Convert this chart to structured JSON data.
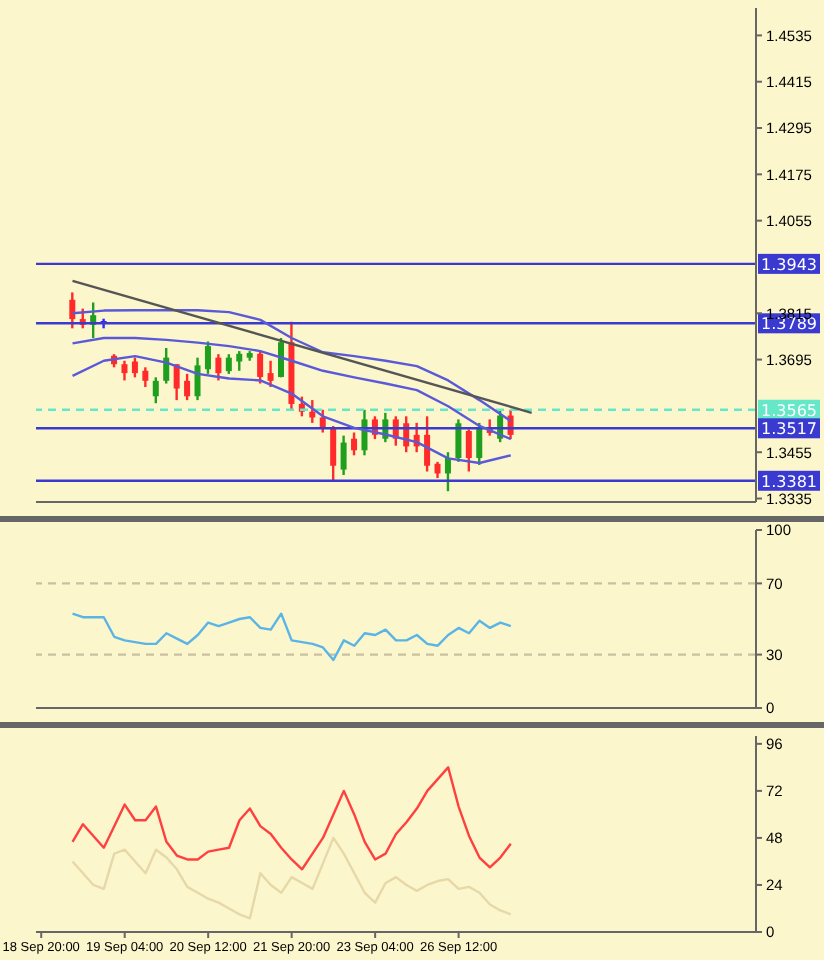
{
  "chart_data": [
    {
      "type": "candlestick",
      "tick_labels": "y",
      "ohlc": [
        null,
        null,
        null,
        [
          1.385,
          1.3869,
          1.3776,
          1.38
        ],
        [
          1.38,
          1.3827,
          1.3776,
          1.3785
        ],
        [
          1.3785,
          1.3843,
          1.3751,
          1.381
        ],
        [
          1.3795,
          1.3801,
          1.3776,
          1.379
        ],
        [
          1.3705,
          1.3709,
          1.3675,
          1.3683
        ],
        [
          1.3683,
          1.3692,
          1.3641,
          1.366
        ],
        [
          1.369,
          1.37,
          1.3649,
          1.366
        ],
        [
          1.3666,
          1.3675,
          1.3624,
          1.364
        ],
        [
          1.36,
          1.3649,
          1.3582,
          1.364
        ],
        [
          1.364,
          1.3725,
          1.3633,
          1.37
        ],
        [
          1.3683,
          1.3683,
          1.359,
          1.362
        ],
        [
          1.364,
          1.3658,
          1.359,
          1.36
        ],
        [
          1.36,
          1.37,
          1.359,
          1.368
        ],
        [
          1.367,
          1.3742,
          1.3658,
          1.373
        ],
        [
          1.37,
          1.3709,
          1.3641,
          1.366
        ],
        [
          1.3665,
          1.3709,
          1.3658,
          1.37
        ],
        [
          1.369,
          1.3717,
          1.3666,
          1.371
        ],
        [
          1.37,
          1.3717,
          1.3692,
          1.3712
        ],
        [
          1.371,
          1.3717,
          1.3633,
          1.365
        ],
        [
          1.366,
          1.3692,
          1.3624,
          1.364
        ],
        [
          1.365,
          1.3751,
          1.3649,
          1.374
        ],
        [
          1.374,
          1.3793,
          1.3565,
          1.358
        ],
        [
          1.358,
          1.3599,
          1.3548,
          1.356
        ],
        [
          1.356,
          1.359,
          1.3531,
          1.3545
        ],
        [
          1.3545,
          1.3565,
          1.3506,
          1.352
        ],
        [
          1.352,
          1.3523,
          1.338,
          1.342
        ],
        [
          1.341,
          1.3498,
          1.3396,
          1.348
        ],
        [
          1.349,
          1.3506,
          1.3447,
          1.346
        ],
        [
          1.346,
          1.3565,
          1.3447,
          1.354
        ],
        [
          1.354,
          1.3548,
          1.3489,
          1.35
        ],
        [
          1.349,
          1.3557,
          1.3481,
          1.354
        ],
        [
          1.354,
          1.3548,
          1.3472,
          1.349
        ],
        [
          1.353,
          1.3548,
          1.3455,
          1.347
        ],
        [
          1.35,
          1.3531,
          1.3455,
          1.347
        ],
        [
          1.35,
          1.3548,
          1.3405,
          1.342
        ],
        [
          1.3425,
          1.343,
          1.3388,
          1.34
        ],
        [
          1.34,
          1.3455,
          1.3354,
          1.344
        ],
        [
          1.344,
          1.354,
          1.343,
          1.353
        ],
        [
          1.351,
          1.3514,
          1.3405,
          1.344
        ],
        [
          1.344,
          1.3531,
          1.3422,
          1.352
        ],
        [
          1.352,
          1.354,
          1.3498,
          1.3505
        ],
        [
          1.349,
          1.3565,
          1.3481,
          1.355
        ],
        [
          1.355,
          1.3565,
          1.3489,
          1.35
        ],
        null,
        null,
        null,
        null,
        null,
        null,
        null,
        null,
        null,
        null,
        null,
        null,
        null,
        null,
        null,
        null,
        null,
        null,
        null,
        null,
        null,
        null,
        null
      ],
      "colors": [
        null,
        null,
        null,
        "#ff2a2a",
        "#ff2a2a",
        "#1ea01e",
        "#2a2aff",
        "#ff2a2a",
        "#ff2a2a",
        "#ff2a2a",
        "#ff2a2a",
        "#1ea01e",
        "#1ea01e",
        "#ff2a2a",
        "#ff2a2a",
        "#1ea01e",
        "#1ea01e",
        "#ff2a2a",
        "#1ea01e",
        "#1ea01e",
        "#1ea01e",
        "#ff2a2a",
        "#ff2a2a",
        "#1ea01e",
        "#ff2a2a",
        "#ff2a2a",
        "#ff2a2a",
        "#ff2a2a",
        "#ff2a2a",
        "#1ea01e",
        "#ff2a2a",
        "#1ea01e",
        "#ff2a2a",
        "#1ea01e",
        "#ff2a2a",
        "#ff2a2a",
        "#ff2a2a",
        "#ff2a2a",
        "#ff2a2a",
        "#1ea01e",
        "#1ea01e",
        "#ff2a2a",
        "#1ea01e",
        "#ff2a2a",
        "#1ea01e",
        "#ff2a2a",
        null,
        null,
        null,
        null,
        null,
        null,
        null,
        null,
        null,
        null,
        null,
        null,
        null,
        null,
        null,
        null,
        null,
        null,
        null,
        null,
        null,
        null,
        null
      ],
      "series": [
        {
          "type": "line",
          "color": "#5a5ad8",
          "values": [
            null,
            null,
            null,
            1.3815,
            null,
            null,
            1.3822,
            null,
            null,
            1.3823,
            null,
            null,
            1.3823,
            null,
            null,
            1.3823,
            null,
            null,
            1.3818,
            null,
            null,
            1.3798,
            null,
            null,
            1.3751,
            null,
            null,
            1.3714,
            null,
            null,
            1.3704,
            null,
            null,
            1.3692,
            null,
            null,
            1.3678,
            null,
            null,
            1.3641,
            null,
            null,
            1.359,
            null,
            null,
            1.3536,
            null,
            null,
            null,
            null,
            null,
            null,
            null,
            null,
            null,
            null,
            null,
            null,
            null,
            null,
            null,
            null,
            null,
            null,
            null,
            null,
            null,
            null,
            null
          ]
        },
        {
          "type": "line",
          "color": "#5a5ad8",
          "values": [
            null,
            null,
            null,
            1.3737,
            null,
            null,
            1.3751,
            null,
            null,
            1.3751,
            null,
            null,
            1.3746,
            null,
            null,
            1.3739,
            null,
            null,
            1.373,
            null,
            null,
            1.3717,
            null,
            null,
            1.3692,
            null,
            null,
            1.3666,
            null,
            null,
            1.3649,
            null,
            null,
            1.3633,
            null,
            null,
            1.3616,
            null,
            null,
            1.3574,
            null,
            null,
            1.3523,
            null,
            null,
            1.3489,
            null,
            null,
            null,
            null,
            null,
            null,
            null,
            null,
            null,
            null,
            null,
            null,
            null,
            null,
            null,
            null,
            null,
            null,
            null,
            null,
            null,
            null,
            null
          ]
        },
        {
          "type": "line",
          "color": "#5a5ad8",
          "values": [
            null,
            null,
            null,
            1.3653,
            null,
            null,
            1.3692,
            null,
            null,
            1.3704,
            null,
            null,
            1.3687,
            null,
            null,
            1.3658,
            null,
            null,
            1.3646,
            null,
            null,
            1.3641,
            null,
            null,
            1.3607,
            null,
            null,
            1.3548,
            null,
            null,
            1.3518,
            null,
            null,
            1.3501,
            null,
            null,
            1.3481,
            null,
            null,
            1.3439,
            null,
            null,
            1.3427,
            null,
            null,
            1.3447,
            null,
            null,
            null,
            null,
            null,
            null,
            null,
            null,
            null,
            null,
            null,
            null,
            null,
            null,
            null,
            null,
            null,
            null,
            null,
            null,
            null,
            null,
            null
          ]
        },
        {
          "type": "line",
          "color": "#555555",
          "values": [
            null,
            null,
            null,
            1.3899,
            null,
            null,
            null,
            null,
            null,
            null,
            null,
            null,
            null,
            null,
            null,
            null,
            null,
            null,
            null,
            null,
            null,
            null,
            null,
            null,
            null,
            null,
            null,
            null,
            null,
            null,
            null,
            null,
            null,
            null,
            null,
            null,
            null,
            null,
            null,
            null,
            null,
            null,
            null,
            null,
            null,
            null,
            null,
            1.3557,
            null,
            null,
            null,
            null,
            null,
            null,
            null,
            null,
            null,
            null,
            null,
            null,
            null,
            null,
            null,
            null,
            null,
            null,
            null,
            null,
            null
          ]
        }
      ],
      "ylim": [
        1.3326,
        1.4606
      ],
      "yticks": [
        1.4535,
        1.4415,
        1.4295,
        1.4175,
        1.4055,
        1.3815,
        1.3695,
        1.3455,
        1.3335
      ],
      "ref_lines": [
        {
          "axis": "y",
          "value": 1.3943,
          "label": "1.3943",
          "color": "#3a3ad0"
        },
        {
          "axis": "y",
          "value": 1.3789,
          "label": "1.3789",
          "color": "#3a3ad0"
        },
        {
          "axis": "y",
          "value": 1.3565,
          "label": "1.3565",
          "color": "#66e8c8",
          "line_style": "dashed"
        },
        {
          "axis": "y",
          "value": 1.3517,
          "label": "1.3517",
          "color": "#3a3ad0"
        },
        {
          "axis": "y",
          "value": 1.3381,
          "label": "1.3381",
          "color": "#3a3ad0"
        }
      ]
    },
    {
      "type": "line",
      "tick_labels": "y",
      "series": [
        {
          "color": "#5ab4e6",
          "values": [
            null,
            null,
            null,
            53,
            51,
            51,
            51,
            40,
            38,
            37,
            36,
            36,
            42,
            39,
            36,
            41,
            48,
            46,
            48,
            50,
            51,
            45,
            44,
            53,
            38,
            37,
            36,
            34,
            27,
            38,
            35,
            42,
            41,
            44,
            38,
            38,
            41,
            36,
            35,
            41,
            45,
            42,
            49,
            45,
            48,
            46,
            null,
            null,
            null,
            null,
            null,
            null,
            null,
            null,
            null,
            null,
            null,
            null,
            null,
            null,
            null,
            null,
            null,
            null,
            null,
            null,
            null,
            null,
            null
          ]
        }
      ],
      "ylim": [
        0,
        100
      ],
      "yticks": [
        0,
        30,
        70,
        100
      ],
      "ref_lines": [
        {
          "axis": "y",
          "value": 70,
          "color": "#c8c0a0",
          "line_style": "dashed"
        },
        {
          "axis": "y",
          "value": 30,
          "color": "#c8c0a0",
          "line_style": "dashed"
        }
      ]
    },
    {
      "type": "line",
      "categories": [
        "18 Sep 20:00",
        null,
        null,
        null,
        null,
        null,
        null,
        null,
        "19 Sep 04:00",
        null,
        null,
        null,
        null,
        null,
        null,
        null,
        "20 Sep 12:00",
        null,
        null,
        null,
        null,
        null,
        null,
        null,
        "21 Sep 20:00",
        null,
        null,
        null,
        null,
        null,
        null,
        null,
        "23 Sep 04:00",
        null,
        null,
        null,
        null,
        null,
        null,
        null,
        "26 Sep 12:00",
        null,
        null,
        null,
        null,
        null,
        null,
        null,
        null,
        null,
        null,
        null,
        null,
        null,
        null,
        null,
        null,
        null,
        null,
        null,
        null,
        null,
        null,
        null,
        null,
        null,
        null,
        null,
        null
      ],
      "series": [
        {
          "color": "#e6d8a8",
          "values": [
            null,
            null,
            null,
            36,
            30,
            24,
            22,
            40,
            42,
            36,
            30,
            42,
            38,
            32,
            23,
            20,
            17,
            15,
            12,
            9,
            7,
            30,
            24,
            20,
            28,
            25,
            22,
            35,
            48,
            40,
            30,
            20,
            15,
            25,
            28,
            24,
            21,
            24,
            26,
            27,
            22,
            23,
            20,
            14,
            11,
            9,
            null,
            null,
            null,
            null,
            null,
            null,
            null,
            null,
            null,
            null,
            null,
            null,
            null,
            null,
            null,
            null,
            null,
            null,
            null,
            null,
            null,
            null,
            null
          ]
        },
        {
          "color": "#ff4040",
          "values": [
            null,
            null,
            null,
            46,
            55,
            49,
            43,
            54,
            65,
            57,
            57,
            64,
            46,
            39,
            37,
            37,
            41,
            42,
            43,
            57,
            63,
            54,
            50,
            43,
            37,
            32,
            40,
            48,
            60,
            72,
            60,
            46,
            37,
            40,
            50,
            56,
            63,
            72,
            78,
            84,
            64,
            49,
            38,
            33,
            38,
            45,
            null,
            null,
            null,
            null,
            null,
            null,
            null,
            null,
            null,
            null,
            null,
            null,
            null,
            null,
            null,
            null,
            null,
            null,
            null,
            null,
            null,
            null,
            null
          ]
        }
      ],
      "ylim": [
        0,
        100
      ],
      "yticks": [
        0,
        24,
        48,
        72,
        96
      ]
    }
  ]
}
